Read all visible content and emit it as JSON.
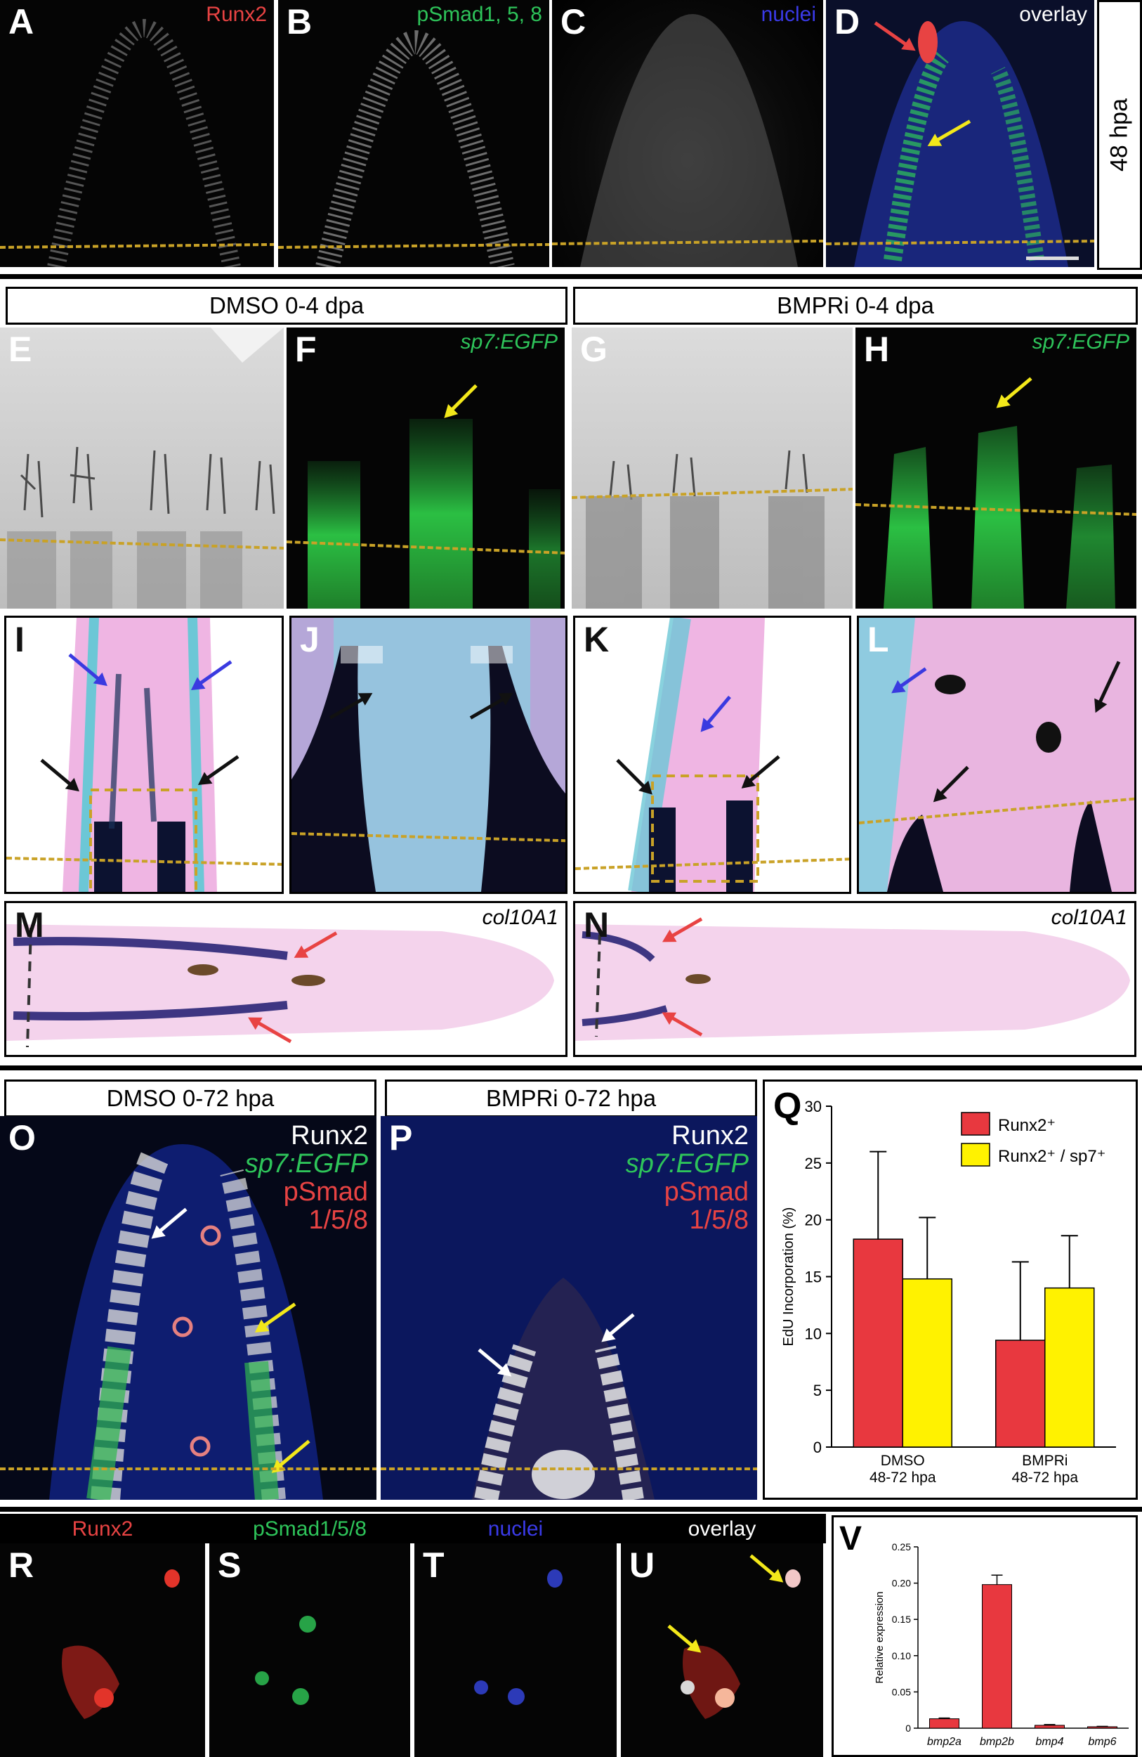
{
  "row1": {
    "panels": [
      {
        "letter": "A",
        "label": "Runx2",
        "color": "#e84343"
      },
      {
        "letter": "B",
        "label": "pSmad1, 5, 8",
        "color": "#2ec45a"
      },
      {
        "letter": "C",
        "label": "nuclei",
        "color": "#3a3ae8"
      },
      {
        "letter": "D",
        "label": "overlay",
        "color": "#ffffff"
      }
    ],
    "side_label": "48 hpa"
  },
  "headers": {
    "dmso": "DMSO 0-4 dpa",
    "bmpri": "BMPRi 0-4 dpa"
  },
  "row2": {
    "panels": [
      {
        "letter": "E",
        "label": ""
      },
      {
        "letter": "F",
        "label": "sp7:EGFP",
        "color": "#2ec45a"
      },
      {
        "letter": "G",
        "label": ""
      },
      {
        "letter": "H",
        "label": "sp7:EGFP",
        "color": "#2ec45a"
      }
    ]
  },
  "row3": {
    "panels": [
      {
        "letter": "I"
      },
      {
        "letter": "J"
      },
      {
        "letter": "K"
      },
      {
        "letter": "L"
      }
    ]
  },
  "row4": {
    "panels": [
      {
        "letter": "M",
        "label": "col10A1"
      },
      {
        "letter": "N",
        "label": "col10A1"
      }
    ]
  },
  "row5": {
    "header_o": "DMSO 0-72 hpa",
    "header_p": "BMPRi 0-72 hpa",
    "o_letter": "O",
    "p_letter": "P",
    "stain": {
      "l1": "Runx2",
      "l2": "sp7:EGFP",
      "l3": "pSmad",
      "l4": "1/5/8"
    },
    "colors": {
      "runx2": "#ffffff",
      "sp7": "#2ec45a",
      "psmad": "#e84343"
    }
  },
  "chart_q": {
    "letter": "Q",
    "chart_data": {
      "type": "bar",
      "categories": [
        "DMSO\n48-72 hpa",
        "BMPRi\n48-72 hpa"
      ],
      "cat_line1": [
        "DMSO",
        "BMPRi"
      ],
      "cat_line2": [
        "48-72 hpa",
        "48-72 hpa"
      ],
      "series": [
        {
          "name": "Runx2⁺",
          "color": "#e8383f",
          "values": [
            18.3,
            9.4
          ],
          "errors": [
            7.7,
            6.9
          ]
        },
        {
          "name": "Runx2⁺ / sp7⁺",
          "color": "#fff200",
          "values": [
            14.8,
            14.0
          ],
          "errors": [
            5.4,
            4.6
          ]
        }
      ],
      "ylabel": "EdU Incorporation (%)",
      "ylim": [
        0,
        30
      ],
      "yticks": [
        0,
        5,
        10,
        15,
        20,
        25,
        30
      ],
      "legend": "top-right"
    }
  },
  "row6": {
    "panels": [
      {
        "letter": "R",
        "label": "Runx2",
        "color": "#e84343"
      },
      {
        "letter": "S",
        "label": "pSmad1/5/8",
        "color": "#2ec45a"
      },
      {
        "letter": "T",
        "label": "nuclei",
        "color": "#3a3ae8"
      },
      {
        "letter": "U",
        "label": "overlay",
        "color": "#ffffff"
      }
    ]
  },
  "chart_v": {
    "letter": "V",
    "chart_data": {
      "type": "bar",
      "categories": [
        "bmp2a",
        "bmp2b",
        "bmp4",
        "bmp6"
      ],
      "values": [
        0.013,
        0.198,
        0.004,
        0.002
      ],
      "errors": [
        0.001,
        0.013,
        0.001,
        0.0005
      ],
      "ylabel": "Relative expression",
      "ylim": [
        0,
        0.25
      ],
      "yticks": [
        0,
        0.05,
        0.1,
        0.15,
        0.2,
        0.25
      ],
      "ytick_labels": [
        "0",
        "0.05",
        "0.10",
        "0.15",
        "0.20",
        "0.25"
      ],
      "color": "#e8383f"
    }
  }
}
